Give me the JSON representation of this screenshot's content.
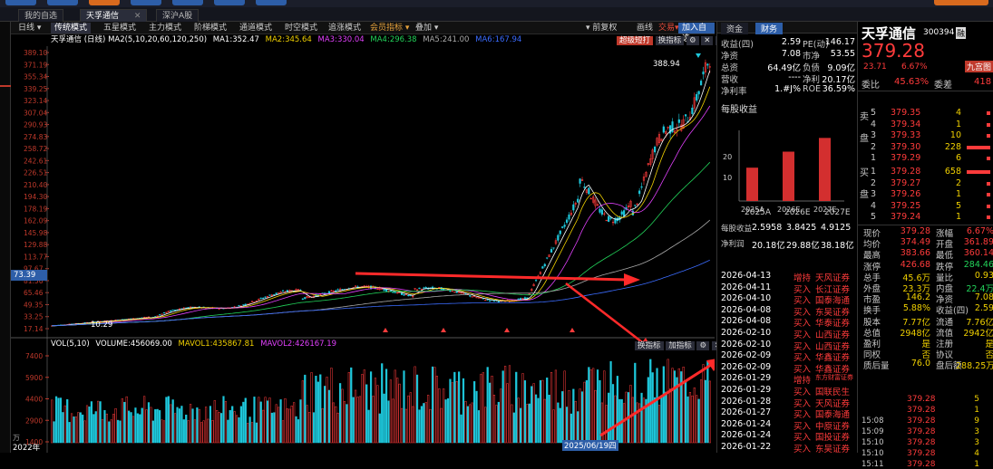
{
  "topbar": {
    "pills": [
      "",
      "",
      "",
      "",
      "",
      "",
      ""
    ]
  },
  "tabs": [
    "我的自选",
    "天孚通信",
    "深沪A股"
  ],
  "mode_bar": {
    "period": "日线",
    "modes": [
      "传统模式",
      "五星模式",
      "主力模式",
      "阶梯模式",
      "通道模式",
      "时空模式",
      "追涨模式",
      "会员指标",
      "叠加"
    ],
    "right": [
      "前复权",
      "画线",
      "交易",
      "加入自选"
    ]
  },
  "legend": {
    "name": "天孚通信",
    "period": "(日线)",
    "ma_params": "MA2(5,10,20,60,120,250)",
    "ma1": "MA1:352.47",
    "ma2": "MA2:345.64",
    "ma3": "MA3:330.04",
    "ma4": "MA4:296.38",
    "ma5": "MA5:241.00",
    "ma6": "MA6:167.94",
    "btn_super": "超级短打",
    "btn_switch": "换指标"
  },
  "price_axis": [
    "389.10",
    "371.19",
    "355.34",
    "339.25",
    "323.14",
    "307.04",
    "290.93",
    "274.83",
    "258.72",
    "242.61",
    "226.51",
    "210.40",
    "194.30",
    "178.19",
    "162.09",
    "145.98",
    "129.88",
    "113.77",
    "97.67",
    "81.56",
    "65.46",
    "49.35",
    "33.25",
    "17.14"
  ],
  "price_labels": {
    "high": "388.94",
    "low": "10.29",
    "current_left": "73.39"
  },
  "volume": {
    "legend_vol": "VOL(5,10)",
    "legend_volume": "VOLUME:456069.00",
    "legend_mavol1": "MAVOL1:435867.81",
    "legend_mavol2": "MAVOL2:426167.19",
    "btn_switch": "换指标",
    "btn_add": "加指标",
    "axis": [
      "7400",
      "5900",
      "4400",
      "2900",
      "1400"
    ],
    "unit": "万"
  },
  "bottom": {
    "start": "2022年",
    "date_highlight": "2025/06/19四"
  },
  "finance": {
    "tabs": [
      "资金",
      "财务"
    ],
    "rows": [
      {
        "k": "收益(四)",
        "v": "2.59",
        "k2": "PE(动)",
        "v2": "146.17"
      },
      {
        "k": "净资",
        "v": "7.08",
        "k2": "市净",
        "v2": "53.55"
      },
      {
        "k": "总资",
        "v": "64.49亿",
        "k2": "负债",
        "v2": "9.09亿"
      },
      {
        "k": "营收",
        "v": "----",
        "k2": "净利",
        "v2": "20.17亿"
      },
      {
        "k": "净利率",
        "v": "1.#J%",
        "k2": "ROE",
        "v2": "36.59%"
      }
    ],
    "eps_title": "每股收益",
    "eps_chart": {
      "categories": [
        "2025A",
        "2026E",
        "2027E"
      ],
      "values": [
        2.5958,
        3.8425,
        4.9125
      ],
      "ytick": [
        "20",
        "10"
      ]
    },
    "eps_year_labels": [
      "2025A",
      "2026E",
      "2027E"
    ],
    "eps_row_label": "每股收益",
    "eps_values": [
      "2.5958",
      "3.8425",
      "4.9125"
    ],
    "np_row_label": "净利润",
    "np_values": [
      "20.18亿",
      "29.88亿",
      "38.18亿"
    ],
    "reports": [
      {
        "date": "2026-04-13",
        "act": "增持",
        "org": "天风证券"
      },
      {
        "date": "2026-04-11",
        "act": "买入",
        "org": "长江证券"
      },
      {
        "date": "2026-04-10",
        "act": "买入",
        "org": "国泰海通"
      },
      {
        "date": "2026-04-08",
        "act": "买入",
        "org": "东吴证券"
      },
      {
        "date": "2026-04-08",
        "act": "买入",
        "org": "华泰证券"
      },
      {
        "date": "2026-02-10",
        "act": "买入",
        "org": "山西证券"
      },
      {
        "date": "2026-02-10",
        "act": "买入",
        "org": "山西证券"
      },
      {
        "date": "2026-02-09",
        "act": "买入",
        "org": "华鑫证券"
      },
      {
        "date": "2026-02-09",
        "act": "买入",
        "org": "华鑫证券"
      },
      {
        "date": "2026-01-29",
        "act": "增持",
        "org": "东方财富证券"
      },
      {
        "date": "2026-01-29",
        "act": "买入",
        "org": "国联民生"
      },
      {
        "date": "2026-01-28",
        "act": "买入",
        "org": "天风证券"
      },
      {
        "date": "2026-01-27",
        "act": "买入",
        "org": "国泰海通"
      },
      {
        "date": "2026-01-24",
        "act": "买入",
        "org": "中原证券"
      },
      {
        "date": "2026-01-24",
        "act": "买入",
        "org": "国投证券"
      },
      {
        "date": "2026-01-22",
        "act": "买入",
        "org": "东吴证券"
      }
    ]
  },
  "quote": {
    "name": "天孚通信",
    "code": "300394",
    "badge": "融",
    "price": "379.28",
    "change": "23.71",
    "pct": "6.67%",
    "btn": "九宫图",
    "weibi_label": "委比",
    "weibi": "45.63%",
    "weicha_label": "委差",
    "weicha": "418",
    "sell_label": [
      "卖",
      "盘"
    ],
    "buy_label": [
      "买",
      "盘"
    ],
    "asks": [
      {
        "lvl": "5",
        "p": "379.35",
        "v": "4"
      },
      {
        "lvl": "4",
        "p": "379.34",
        "v": "1"
      },
      {
        "lvl": "3",
        "p": "379.33",
        "v": "10"
      },
      {
        "lvl": "2",
        "p": "379.30",
        "v": "228"
      },
      {
        "lvl": "1",
        "p": "379.29",
        "v": "6"
      }
    ],
    "bids": [
      {
        "lvl": "1",
        "p": "379.28",
        "v": "658"
      },
      {
        "lvl": "2",
        "p": "379.27",
        "v": "2"
      },
      {
        "lvl": "3",
        "p": "379.26",
        "v": "1"
      },
      {
        "lvl": "4",
        "p": "379.25",
        "v": "5"
      },
      {
        "lvl": "5",
        "p": "379.24",
        "v": "1"
      }
    ],
    "stats": [
      {
        "k": "现价",
        "v": "379.28",
        "k2": "涨幅",
        "v2": "6.67%"
      },
      {
        "k": "均价",
        "v": "374.49",
        "k2": "开盘",
        "v2": "361.89"
      },
      {
        "k": "最高",
        "v": "383.66",
        "k2": "最低",
        "v2": "360.14"
      },
      {
        "k": "涨停",
        "v": "426.68",
        "k2": "跌停",
        "v2": "284.46"
      },
      {
        "k": "总手",
        "v": "45.6万",
        "k2": "量比",
        "v2": "0.93"
      },
      {
        "k": "外盘",
        "v": "23.3万",
        "k2": "内盘",
        "v2": "22.4万"
      },
      {
        "k": "市盈",
        "v": "146.2",
        "k2": "净资",
        "v2": "7.08"
      },
      {
        "k": "换手",
        "v": "5.88%",
        "k2": "收益(四)",
        "v2": "2.59"
      },
      {
        "k": "股本",
        "v": "7.77亿",
        "k2": "流通",
        "v2": "7.76亿"
      },
      {
        "k": "总值",
        "v": "2948亿",
        "k2": "流值",
        "v2": "2942亿"
      },
      {
        "k": "盈利",
        "v": "是",
        "k2": "注册",
        "v2": "是"
      },
      {
        "k": "同权",
        "v": "否",
        "k2": "协议",
        "v2": "否"
      },
      {
        "k": "质后量",
        "v": "76.0",
        "k2": "盘后额",
        "v2": "288.25万"
      }
    ],
    "ticks": [
      {
        "t": "",
        "p": "379.28",
        "v": "5"
      },
      {
        "t": "",
        "p": "379.28",
        "v": "1"
      },
      {
        "t": "15:08",
        "p": "379.28",
        "v": "9"
      },
      {
        "t": "15:09",
        "p": "379.28",
        "v": "3"
      },
      {
        "t": "15:10",
        "p": "379.28",
        "v": "3"
      },
      {
        "t": "15:10",
        "p": "379.28",
        "v": "4"
      },
      {
        "t": "15:11",
        "p": "379.28",
        "v": "1"
      }
    ]
  }
}
